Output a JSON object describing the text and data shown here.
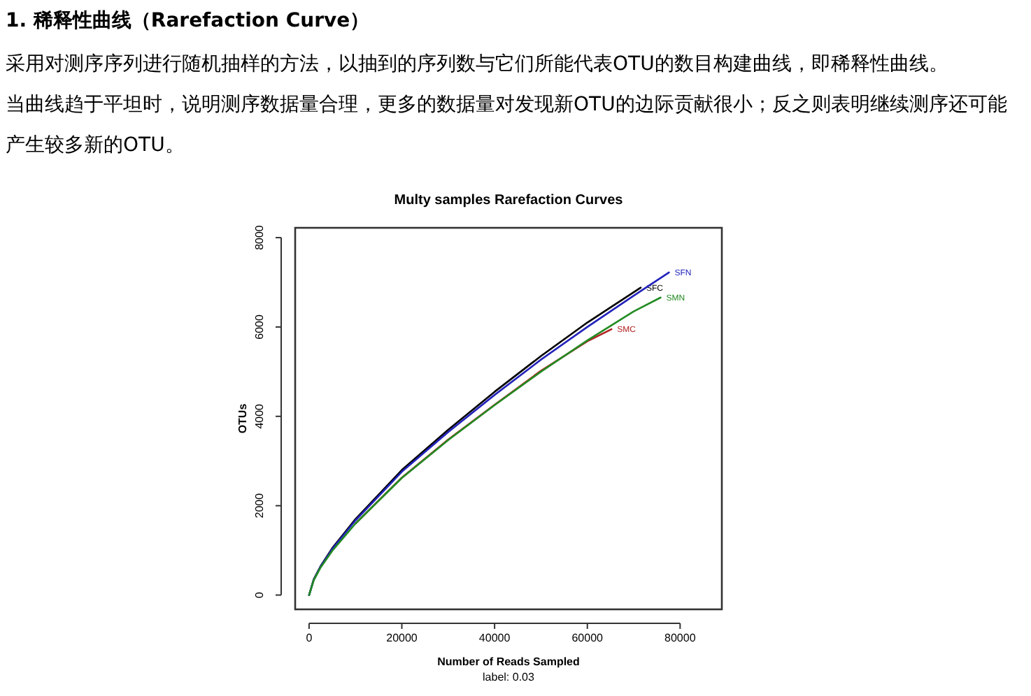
{
  "chart_data": {
    "type": "line",
    "title": "Multy samples Rarefaction Curves",
    "xlabel": "Number of Reads Sampled",
    "ylabel": "OTUs",
    "annotations": [
      "1. 稀释性曲线（Rarefaction Curve）",
      "采用对测序序列进行随机抽样的方法，以抽到的序列数与它们所能代表OTU的数目构建曲线，即稀释性曲线。",
      "当曲线趋于平坦时，说明测序数据量合理，更多的数据量对发现新OTU的边际贡献很小；反之则表明继续测序还可能产生较多新的OTU。",
      "label: 0.03"
    ],
    "xlim": [
      -3000,
      89000
    ],
    "ylim": [
      -320,
      8220
    ],
    "xticks": [
      0,
      20000,
      40000,
      60000,
      80000
    ],
    "yticks": [
      0,
      2000,
      4000,
      6000,
      8000
    ],
    "line_style": "solid",
    "series": [
      {
        "name": "SFC",
        "color": "#000000",
        "x": [
          0,
          1000,
          2500,
          5000,
          10000,
          20000,
          30000,
          40000,
          50000,
          60000,
          71500
        ],
        "values": [
          0,
          350,
          650,
          1050,
          1700,
          2800,
          3700,
          4550,
          5350,
          6100,
          6880
        ]
      },
      {
        "name": "SFN",
        "color": "#2222bb",
        "x": [
          0,
          1000,
          2500,
          5000,
          10000,
          20000,
          30000,
          40000,
          50000,
          60000,
          70000,
          77600
        ],
        "values": [
          0,
          340,
          640,
          1030,
          1670,
          2760,
          3650,
          4480,
          5270,
          6000,
          6700,
          7220
        ]
      },
      {
        "name": "SMC",
        "color": "#b22222",
        "x": [
          10000,
          20000,
          30000,
          40000,
          50000,
          60000,
          65200
        ],
        "values": [
          1600,
          2630,
          3480,
          4260,
          5020,
          5680,
          5950
        ]
      },
      {
        "name": "SMN",
        "color": "#228b22",
        "x": [
          0,
          1000,
          2500,
          5000,
          10000,
          20000,
          30000,
          40000,
          50000,
          60000,
          70000,
          75800
        ],
        "values": [
          0,
          330,
          620,
          990,
          1600,
          2620,
          3470,
          4250,
          5000,
          5700,
          6350,
          6660
        ]
      }
    ]
  }
}
